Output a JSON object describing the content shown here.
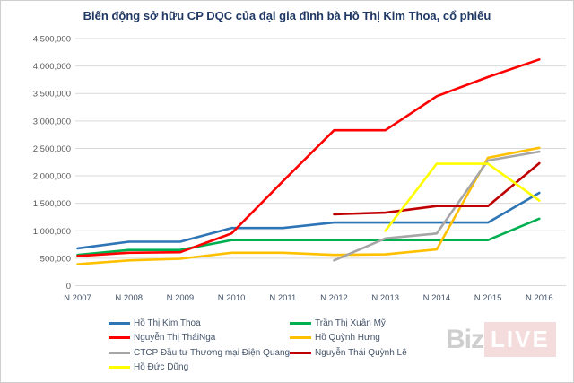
{
  "watermark": {
    "prefix": "Biz",
    "suffix": "LIVE"
  },
  "chart_data": {
    "type": "line",
    "title": "Biến động sở hữu CP DQC của đại gia đình bà Hồ Thị Kim Thoa, cổ phiếu",
    "categories": [
      "N 2007",
      "N 2008",
      "N 2009",
      "N 2010",
      "N 2011",
      "N 2012",
      "N 2013",
      "N 2014",
      "N 2015",
      "N 2016"
    ],
    "xlabel": "",
    "ylabel": "",
    "ylim": [
      0,
      4500000
    ],
    "ytick_step": 500000,
    "grid": true,
    "legend_position": "bottom",
    "series": [
      {
        "name": "Hồ Thị Kim Thoa",
        "color": "#2e75b6",
        "values": [
          680000,
          800000,
          800000,
          1050000,
          1050000,
          1150000,
          1150000,
          1150000,
          1150000,
          1690000
        ]
      },
      {
        "name": "Trần Thị Xuân Mỹ",
        "color": "#00b050",
        "values": [
          560000,
          650000,
          650000,
          830000,
          830000,
          830000,
          830000,
          830000,
          830000,
          1220000
        ]
      },
      {
        "name": "Nguyễn Thị TháiNga",
        "color": "#ff0000",
        "values": [
          540000,
          600000,
          610000,
          950000,
          1900000,
          2830000,
          2830000,
          3450000,
          3800000,
          4120000
        ]
      },
      {
        "name": "Hồ Quỳnh Hưng",
        "color": "#ffc000",
        "values": [
          390000,
          460000,
          490000,
          600000,
          600000,
          560000,
          570000,
          660000,
          2330000,
          2510000
        ]
      },
      {
        "name": "CTCP Đầu tư Thương mại Điện Quang",
        "color": "#a6a6a6",
        "values": [
          null,
          null,
          null,
          null,
          null,
          460000,
          860000,
          950000,
          2280000,
          2440000
        ]
      },
      {
        "name": "Nguyễn Thái Quỳnh Lê",
        "color": "#c00000",
        "values": [
          null,
          null,
          null,
          null,
          null,
          1300000,
          1330000,
          1450000,
          1450000,
          2230000
        ]
      },
      {
        "name": "Hồ Đức Dũng",
        "color": "#ffff00",
        "values": [
          null,
          null,
          null,
          null,
          null,
          null,
          1000000,
          2220000,
          2220000,
          1550000
        ]
      }
    ]
  }
}
